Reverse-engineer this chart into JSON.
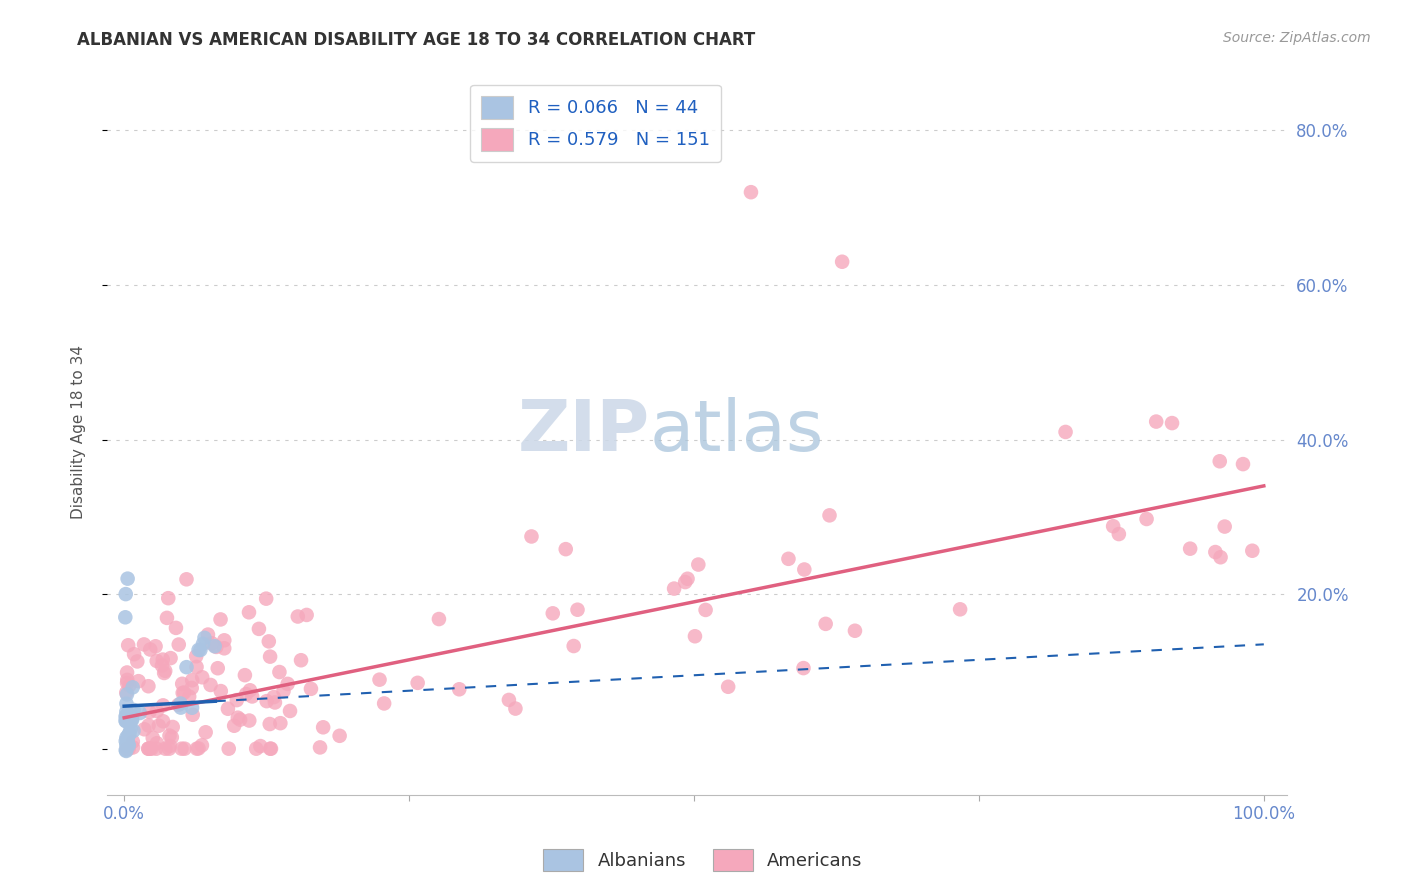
{
  "title": "ALBANIAN VS AMERICAN DISABILITY AGE 18 TO 34 CORRELATION CHART",
  "source": "Source: ZipAtlas.com",
  "ylabel": "Disability Age 18 to 34",
  "R_albanian": 0.066,
  "N_albanian": 44,
  "R_american": 0.579,
  "N_american": 151,
  "albanian_color": "#aac4e2",
  "american_color": "#f5a8bc",
  "albanian_line_color": "#2060b0",
  "american_line_color": "#e06080",
  "legend_label_albanian": "Albanians",
  "legend_label_american": "Americans",
  "background_color": "#ffffff",
  "title_color": "#333333",
  "source_color": "#999999",
  "axis_color": "#6688cc",
  "ylabel_color": "#555555"
}
